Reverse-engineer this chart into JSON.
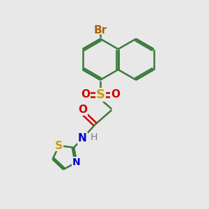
{
  "bg_color": "#e8e8e8",
  "bond_color": "#3a7a3a",
  "bond_width": 1.8,
  "br_color": "#b06000",
  "s_sulfonyl_color": "#c8a000",
  "o_color": "#cc0000",
  "n_color": "#0000cc",
  "s_thiazole_color": "#c8a000",
  "h_color": "#708090",
  "font_size": 11,
  "small_font_size": 10,
  "xlim": [
    0,
    10
  ],
  "ylim": [
    0,
    10
  ]
}
